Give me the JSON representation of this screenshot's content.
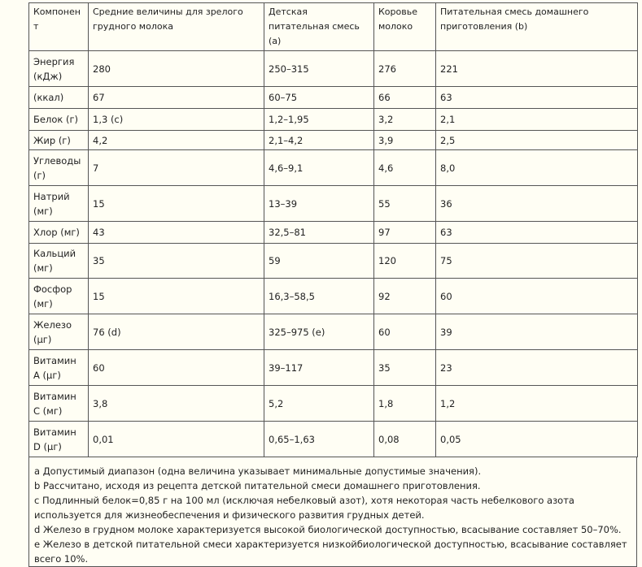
{
  "table": {
    "headers": [
      "Компонент",
      "Средние величины для зрелого грудного молока",
      "Детская питательная смесь (а)",
      "Коровье молоко",
      "Питательная смесь домашнего приготовления (b)"
    ],
    "rows": [
      [
        "Энергия (кДж)",
        "280",
        "250–315",
        "276",
        "221"
      ],
      [
        "(ккал)",
        "67",
        "60–75",
        "66",
        "63"
      ],
      [
        "Белок (г)",
        "1,3 (с)",
        "1,2–1,95",
        "3,2",
        "2,1"
      ],
      [
        "Жир (г)",
        "4,2",
        "2,1–4,2",
        "3,9",
        "2,5"
      ],
      [
        "Углеводы (г)",
        "7",
        "4,6–9,1",
        "4,6",
        "8,0"
      ],
      [
        "Натрий (мг)",
        "15",
        "13–39",
        "55",
        "36"
      ],
      [
        "Хлор (мг)",
        "43",
        "32,5–81",
        "97",
        "63"
      ],
      [
        "Кальций (мг)",
        "35",
        "59",
        "120",
        "75"
      ],
      [
        "Фосфор (мг)",
        "15",
        "16,3–58,5",
        "92",
        "60"
      ],
      [
        "Железо (μг)",
        "76 (d)",
        "325–975 (e)",
        "60",
        "39"
      ],
      [
        "Витамин А (μг)",
        "60",
        "39–117",
        "35",
        "23"
      ],
      [
        "Витамин С (мг)",
        "3,8",
        "5,2",
        "1,8",
        "1,2"
      ],
      [
        "Витамин D (μг)",
        "0,01",
        "0,65–1,63",
        "0,08",
        "0,05"
      ]
    ],
    "footnotes": [
      "а Допустимый диапазон (одна величина указывает минимальные допустимые значения).",
      "b Рассчитано, исходя из рецепта детской питательной смеси домашнего приготовления.",
      "с Подлинный белок=0,85 г на 100 мл (исключая небелковый азот), хотя некоторая часть небелкового азота используется для жизнеобеспечения и физического развития грудных детей.",
      "d Железо в грудном молоке характеризуется высокой биологической доступностью, всасывание составляет 50–70%.",
      "е Железо в детской питательной смеси характеризуется низкойбиологической доступностью, всасывание составляет всего 10%."
    ]
  }
}
